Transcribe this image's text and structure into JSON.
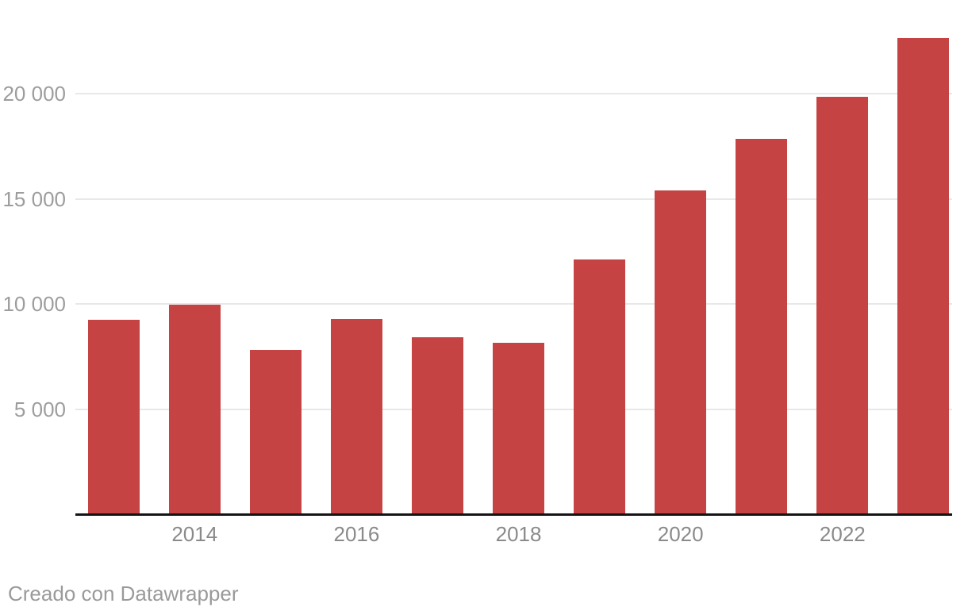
{
  "chart_data": {
    "type": "bar",
    "categories": [
      "2013",
      "2014",
      "2015",
      "2016",
      "2017",
      "2018",
      "2019",
      "2020",
      "2021",
      "2022",
      "2023"
    ],
    "values": [
      9250,
      9950,
      7800,
      9300,
      8400,
      8150,
      12100,
      15400,
      17850,
      19850,
      22650
    ],
    "title": "",
    "xlabel": "",
    "ylabel": "",
    "ylim": [
      0,
      23000
    ],
    "grid": "horizontal-only",
    "legend": "none",
    "y_ticks": [
      {
        "value": 5000,
        "label": "5 000"
      },
      {
        "value": 10000,
        "label": "10 000"
      },
      {
        "value": 15000,
        "label": "15 000"
      },
      {
        "value": 20000,
        "label": "20 000"
      }
    ],
    "x_tick_labels": [
      {
        "category_index": 1,
        "label": "2014"
      },
      {
        "category_index": 3,
        "label": "2016"
      },
      {
        "category_index": 5,
        "label": "2018"
      },
      {
        "category_index": 7,
        "label": "2020"
      },
      {
        "category_index": 9,
        "label": "2022"
      }
    ]
  },
  "colors": {
    "bar": "#c64343",
    "gridline": "#e8e8e8",
    "baseline": "#141414",
    "y_label": "#9d9d9d",
    "x_label": "#8a8a8a",
    "footer": "#9a9a9a",
    "background": "#ffffff"
  },
  "footer": {
    "attribution": "Creado con Datawrapper"
  }
}
